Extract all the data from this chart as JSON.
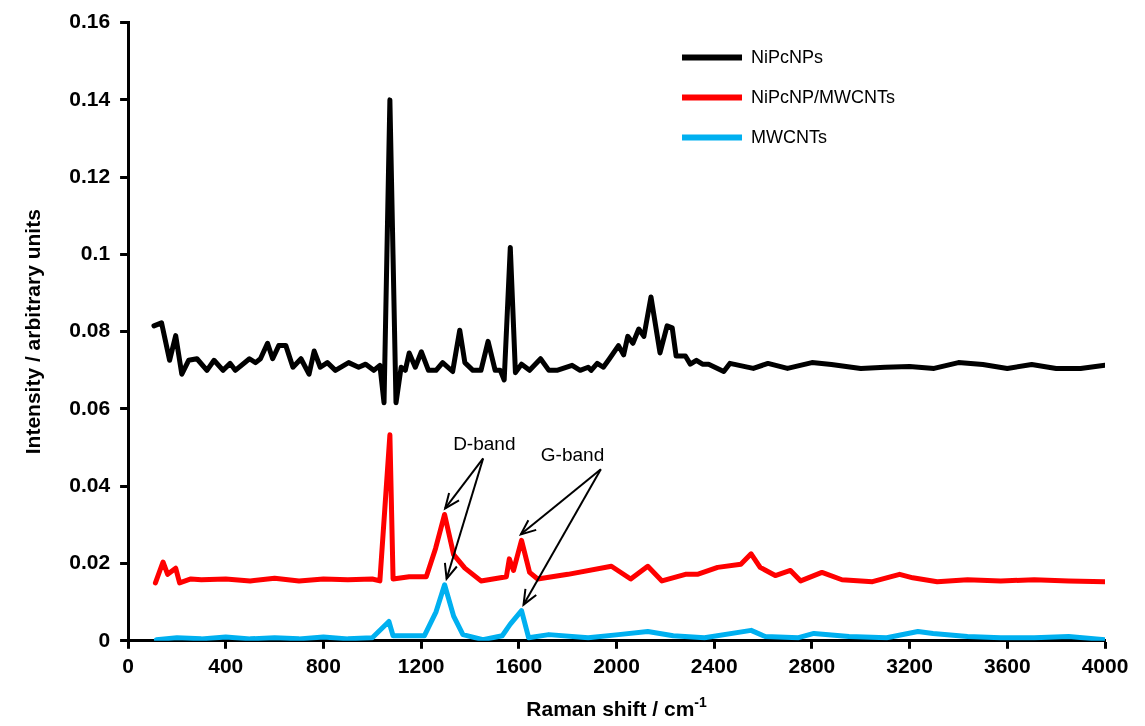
{
  "chart_data": {
    "type": "line",
    "xlabel": "Raman shift / cm$^{-1}$",
    "ylabel": "Intensity / arbitrary units",
    "xlim": [
      0,
      4000
    ],
    "xticks": [
      0,
      400,
      800,
      1200,
      1600,
      2000,
      2400,
      2800,
      3200,
      3600,
      4000
    ],
    "ylim": [
      0,
      0.16
    ],
    "yticks": [
      0,
      0.02,
      0.04,
      0.06,
      0.08,
      0.1,
      0.12,
      0.14,
      0.16
    ],
    "grid": false,
    "legend": "top right",
    "marker": "none",
    "line_style": "solid",
    "annotations": [
      {
        "text": "D-band",
        "x": 1290,
        "y": 0.0327
      },
      {
        "text": "G-band",
        "x": 1600,
        "y": 0.026
      }
    ],
    "series": [
      {
        "name": "NiPcNPs",
        "color": "#000000",
        "x": [
          106,
          137,
          170,
          195,
          220,
          248,
          282,
          323,
          352,
          389,
          418,
          439,
          497,
          522,
          542,
          571,
          592,
          617,
          646,
          675,
          708,
          741,
          762,
          787,
          816,
          849,
          903,
          944,
          973,
          1006,
          1031,
          1048,
          1072,
          1097,
          1118,
          1135,
          1151,
          1176,
          1201,
          1230,
          1261,
          1288,
          1329,
          1358,
          1379,
          1412,
          1445,
          1474,
          1503,
          1524,
          1540,
          1565,
          1586,
          1611,
          1644,
          1689,
          1723,
          1756,
          1818,
          1851,
          1884,
          1896,
          1921,
          1946,
          1971,
          2008,
          2029,
          2046,
          2067,
          2091,
          2112,
          2141,
          2178,
          2207,
          2228,
          2244,
          2282,
          2302,
          2327,
          2352,
          2377,
          2439,
          2464,
          2560,
          2620,
          2700,
          2800,
          2880,
          3000,
          3100,
          3200,
          3300,
          3400,
          3500,
          3600,
          3700,
          3800,
          3900,
          4000
        ],
        "values": [
          0.0815,
          0.0823,
          0.0726,
          0.079,
          0.069,
          0.0726,
          0.073,
          0.07,
          0.0726,
          0.07,
          0.0718,
          0.07,
          0.073,
          0.072,
          0.073,
          0.077,
          0.073,
          0.0764,
          0.0764,
          0.0708,
          0.073,
          0.069,
          0.075,
          0.0708,
          0.072,
          0.07,
          0.072,
          0.0708,
          0.0716,
          0.07,
          0.0713,
          0.0616,
          0.14,
          0.0616,
          0.0708,
          0.07,
          0.0745,
          0.0708,
          0.0748,
          0.07,
          0.07,
          0.072,
          0.0697,
          0.0804,
          0.072,
          0.07,
          0.07,
          0.0775,
          0.07,
          0.07,
          0.0675,
          0.1018,
          0.0694,
          0.0716,
          0.07,
          0.073,
          0.07,
          0.07,
          0.0713,
          0.07,
          0.0708,
          0.07,
          0.0718,
          0.0708,
          0.073,
          0.0764,
          0.074,
          0.0788,
          0.077,
          0.0807,
          0.0788,
          0.089,
          0.0745,
          0.0815,
          0.081,
          0.0737,
          0.0737,
          0.0716,
          0.0726,
          0.0716,
          0.0716,
          0.0697,
          0.0718,
          0.0705,
          0.0718,
          0.0705,
          0.072,
          0.0715,
          0.0705,
          0.0708,
          0.071,
          0.0705,
          0.072,
          0.0715,
          0.0705,
          0.0715,
          0.0705,
          0.0705,
          0.0713
        ]
      },
      {
        "name": "NiPcNP/MWCNTs",
        "color": "#ff0000",
        "x": [
          112,
          143,
          162,
          195,
          211,
          257,
          300,
          400,
          500,
          600,
          700,
          800,
          900,
          1000,
          1031,
          1072,
          1085,
          1151,
          1221,
          1259,
          1296,
          1333,
          1379,
          1445,
          1549,
          1561,
          1578,
          1611,
          1644,
          1677,
          1801,
          1979,
          2058,
          2128,
          2186,
          2282,
          2331,
          2414,
          2509,
          2551,
          2588,
          2650,
          2712,
          2754,
          2841,
          2923,
          3048,
          3159,
          3213,
          3313,
          3437,
          3573,
          3710,
          3851,
          4000
        ],
        "values": [
          0.015,
          0.0204,
          0.0172,
          0.0188,
          0.015,
          0.016,
          0.0158,
          0.016,
          0.0155,
          0.0162,
          0.0155,
          0.016,
          0.0158,
          0.016,
          0.0155,
          0.0533,
          0.016,
          0.0166,
          0.0166,
          0.0239,
          0.0327,
          0.0223,
          0.0188,
          0.0155,
          0.0166,
          0.0212,
          0.0182,
          0.026,
          0.0177,
          0.016,
          0.0172,
          0.0193,
          0.016,
          0.0193,
          0.0155,
          0.0172,
          0.0172,
          0.019,
          0.0198,
          0.0225,
          0.019,
          0.0169,
          0.0182,
          0.0155,
          0.0177,
          0.0158,
          0.0153,
          0.0172,
          0.0163,
          0.0153,
          0.0158,
          0.0155,
          0.0158,
          0.0155,
          0.0153
        ]
      },
      {
        "name": "MWCNTs",
        "color": "#00b0f0",
        "x": [
          116,
          200,
          300,
          400,
          500,
          600,
          700,
          800,
          900,
          1000,
          1068,
          1085,
          1213,
          1261,
          1296,
          1333,
          1371,
          1453,
          1532,
          1565,
          1611,
          1640,
          1723,
          1884,
          2008,
          2128,
          2232,
          2360,
          2551,
          2609,
          2745,
          2808,
          2952,
          3106,
          3234,
          3296,
          3437,
          3573,
          3710,
          3851,
          4000
        ],
        "values": [
          0.0003,
          0.0008,
          0.0005,
          0.001,
          0.0005,
          0.0008,
          0.0005,
          0.001,
          0.0005,
          0.0008,
          0.005,
          0.0013,
          0.0013,
          0.0075,
          0.0145,
          0.0064,
          0.0016,
          0.0003,
          0.0013,
          0.0043,
          0.0078,
          0.0008,
          0.0016,
          0.0008,
          0.0016,
          0.0024,
          0.0013,
          0.0008,
          0.0027,
          0.0011,
          0.0008,
          0.0019,
          0.0011,
          0.0008,
          0.0024,
          0.0019,
          0.0011,
          0.0008,
          0.0008,
          0.0011,
          0.0003
        ]
      }
    ]
  }
}
